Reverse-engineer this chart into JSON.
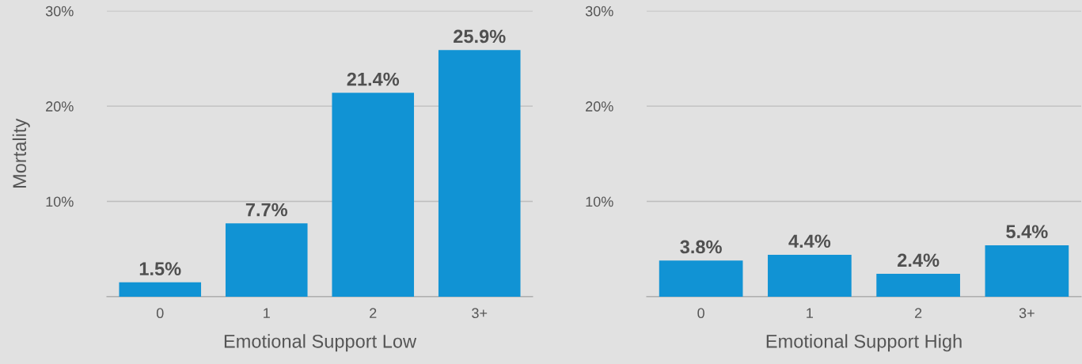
{
  "chart_data": [
    {
      "type": "bar",
      "xlabel": "Emotional Support Low",
      "ylabel": "Mortality",
      "categories": [
        "0",
        "1",
        "2",
        "3+"
      ],
      "values": [
        1.5,
        7.7,
        21.4,
        25.9
      ],
      "value_labels": [
        "1.5%",
        "7.7%",
        "21.4%",
        "25.9%"
      ],
      "color": "#1193d4",
      "ylim": [
        0,
        30
      ],
      "yticks": [
        {
          "value": 0,
          "label": null
        },
        {
          "value": 10,
          "label": "10%"
        },
        {
          "value": 20,
          "label": "20%"
        },
        {
          "value": 30,
          "label": "30%"
        }
      ],
      "grid": "y",
      "legend": false
    },
    {
      "type": "bar",
      "xlabel": "Emotional Support High",
      "categories": [
        "0",
        "1",
        "2",
        "3+"
      ],
      "values": [
        3.8,
        4.4,
        2.4,
        5.4
      ],
      "value_labels": [
        "3.8%",
        "4.4%",
        "2.4%",
        "5.4%"
      ],
      "color": "#1193d4",
      "ylim": [
        0,
        30
      ],
      "yticks": [
        {
          "value": 0,
          "label": null
        },
        {
          "value": 10,
          "label": "10%"
        },
        {
          "value": 20,
          "label": "20%"
        },
        {
          "value": 30,
          "label": "30%"
        }
      ],
      "grid": "y",
      "legend": false
    }
  ]
}
